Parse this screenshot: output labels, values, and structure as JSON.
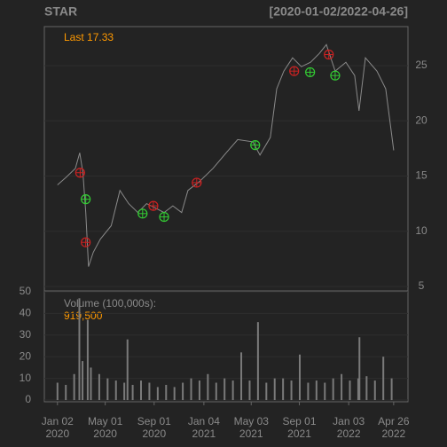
{
  "chart_data": [
    {
      "type": "line",
      "title": "STAR",
      "subtitle": "[2020-01-02/2022-04-26]",
      "annotation": "Last 17.33",
      "color": "#8a8a8a",
      "grid": true,
      "xlim": [
        "2019-11-30",
        "2022-06-01"
      ],
      "ylim": [
        4.6,
        28.53
      ],
      "yticks": [
        5,
        10,
        15,
        20,
        25
      ],
      "x": [
        "2020-01-02",
        "2020-01-24",
        "2020-02-16",
        "2020-02-27",
        "2020-03-06",
        "2020-03-13",
        "2020-03-20",
        "2020-04-01",
        "2020-04-19",
        "2020-05-16",
        "2020-06-07",
        "2020-06-29",
        "2020-07-22",
        "2020-08-13",
        "2020-09-04",
        "2020-09-26",
        "2020-10-18",
        "2020-11-09",
        "2020-11-25",
        "2020-12-24",
        "2021-01-27",
        "2021-03-01",
        "2021-03-30",
        "2021-05-07",
        "2021-05-25",
        "2021-06-20",
        "2021-07-06",
        "2021-07-24",
        "2021-08-15",
        "2021-09-06",
        "2021-09-29",
        "2021-10-21",
        "2021-11-08",
        "2021-11-30",
        "2021-12-27",
        "2022-01-18",
        "2022-01-29",
        "2022-02-14",
        "2022-03-15",
        "2022-04-06",
        "2022-04-26"
      ],
      "values": [
        14.2,
        14.9,
        15.7,
        17.1,
        15.3,
        11.7,
        6.8,
        8.1,
        9.3,
        10.5,
        13.7,
        12.5,
        11.7,
        12.5,
        12.1,
        11.7,
        12.3,
        11.7,
        13.7,
        14.5,
        15.7,
        17.1,
        18.3,
        18.1,
        16.9,
        18.5,
        22.9,
        24.5,
        25.7,
        24.9,
        25.3,
        26.1,
        26.9,
        24.5,
        25.3,
        24.1,
        20.9,
        25.7,
        24.5,
        22.9,
        17.33
      ],
      "markers": [
        {
          "color": "#cc2222",
          "x": [
            "2020-02-28",
            "2020-03-13",
            "2020-08-30",
            "2020-12-17",
            "2021-08-19",
            "2021-11-14"
          ],
          "values": [
            15.3,
            9.0,
            12.3,
            14.4,
            24.5,
            26.0
          ]
        },
        {
          "color": "#33cc33",
          "x": [
            "2020-03-13",
            "2020-08-03",
            "2020-09-26",
            "2021-05-13",
            "2021-09-28",
            "2021-11-30"
          ],
          "values": [
            12.9,
            11.6,
            11.3,
            17.8,
            24.4,
            24.1
          ]
        }
      ]
    },
    {
      "type": "bar",
      "annotation": "Volume (100,000s):",
      "annotation_value": "919,500",
      "color": "#7a7a7a",
      "grid": true,
      "xlim": [
        "2019-11-30",
        "2022-06-01"
      ],
      "ylim": [
        -0.8,
        50.4
      ],
      "yticks": [
        0,
        10,
        20,
        30,
        40,
        50
      ],
      "xticks": [
        {
          "value": "2020-01-02",
          "label": "Jan 02\n2020"
        },
        {
          "value": "2020-05-01",
          "label": "May 01\n2020"
        },
        {
          "value": "2020-09-01",
          "label": "Sep 01\n2020"
        },
        {
          "value": "2021-01-04",
          "label": "Jan 04\n2021"
        },
        {
          "value": "2021-05-03",
          "label": "May 03\n2021"
        },
        {
          "value": "2021-09-01",
          "label": "Sep 01\n2021"
        },
        {
          "value": "2022-01-03",
          "label": "Jan 03\n2022"
        },
        {
          "value": "2022-04-26",
          "label": "Apr 26\n2022"
        }
      ],
      "x": [
        "2020-01-02",
        "2020-01-23",
        "2020-02-13",
        "2020-02-26",
        "2020-03-05",
        "2020-03-18",
        "2020-03-26",
        "2020-04-16",
        "2020-05-07",
        "2020-05-28",
        "2020-06-18",
        "2020-06-26",
        "2020-07-09",
        "2020-07-30",
        "2020-08-20",
        "2020-09-10",
        "2020-10-01",
        "2020-10-22",
        "2020-11-12",
        "2020-12-03",
        "2020-12-24",
        "2021-01-14",
        "2021-02-04",
        "2021-02-25",
        "2021-03-18",
        "2021-04-08",
        "2021-04-29",
        "2021-05-20",
        "2021-06-10",
        "2021-07-01",
        "2021-07-22",
        "2021-08-12",
        "2021-09-02",
        "2021-09-23",
        "2021-10-14",
        "2021-11-04",
        "2021-11-25",
        "2021-12-16",
        "2022-01-06",
        "2022-01-27",
        "2022-01-30",
        "2022-02-17",
        "2022-03-10",
        "2022-03-31",
        "2022-04-21"
      ],
      "values": [
        8,
        7,
        12,
        47,
        18,
        37,
        15,
        12,
        10,
        9,
        8,
        28,
        7,
        9,
        8,
        6,
        7,
        6,
        8,
        10,
        9,
        12,
        8,
        10,
        9,
        22,
        9,
        36,
        8,
        10,
        10,
        9,
        21,
        8,
        9,
        8,
        10,
        12,
        9,
        10,
        29,
        11,
        9,
        20,
        10
      ]
    }
  ]
}
